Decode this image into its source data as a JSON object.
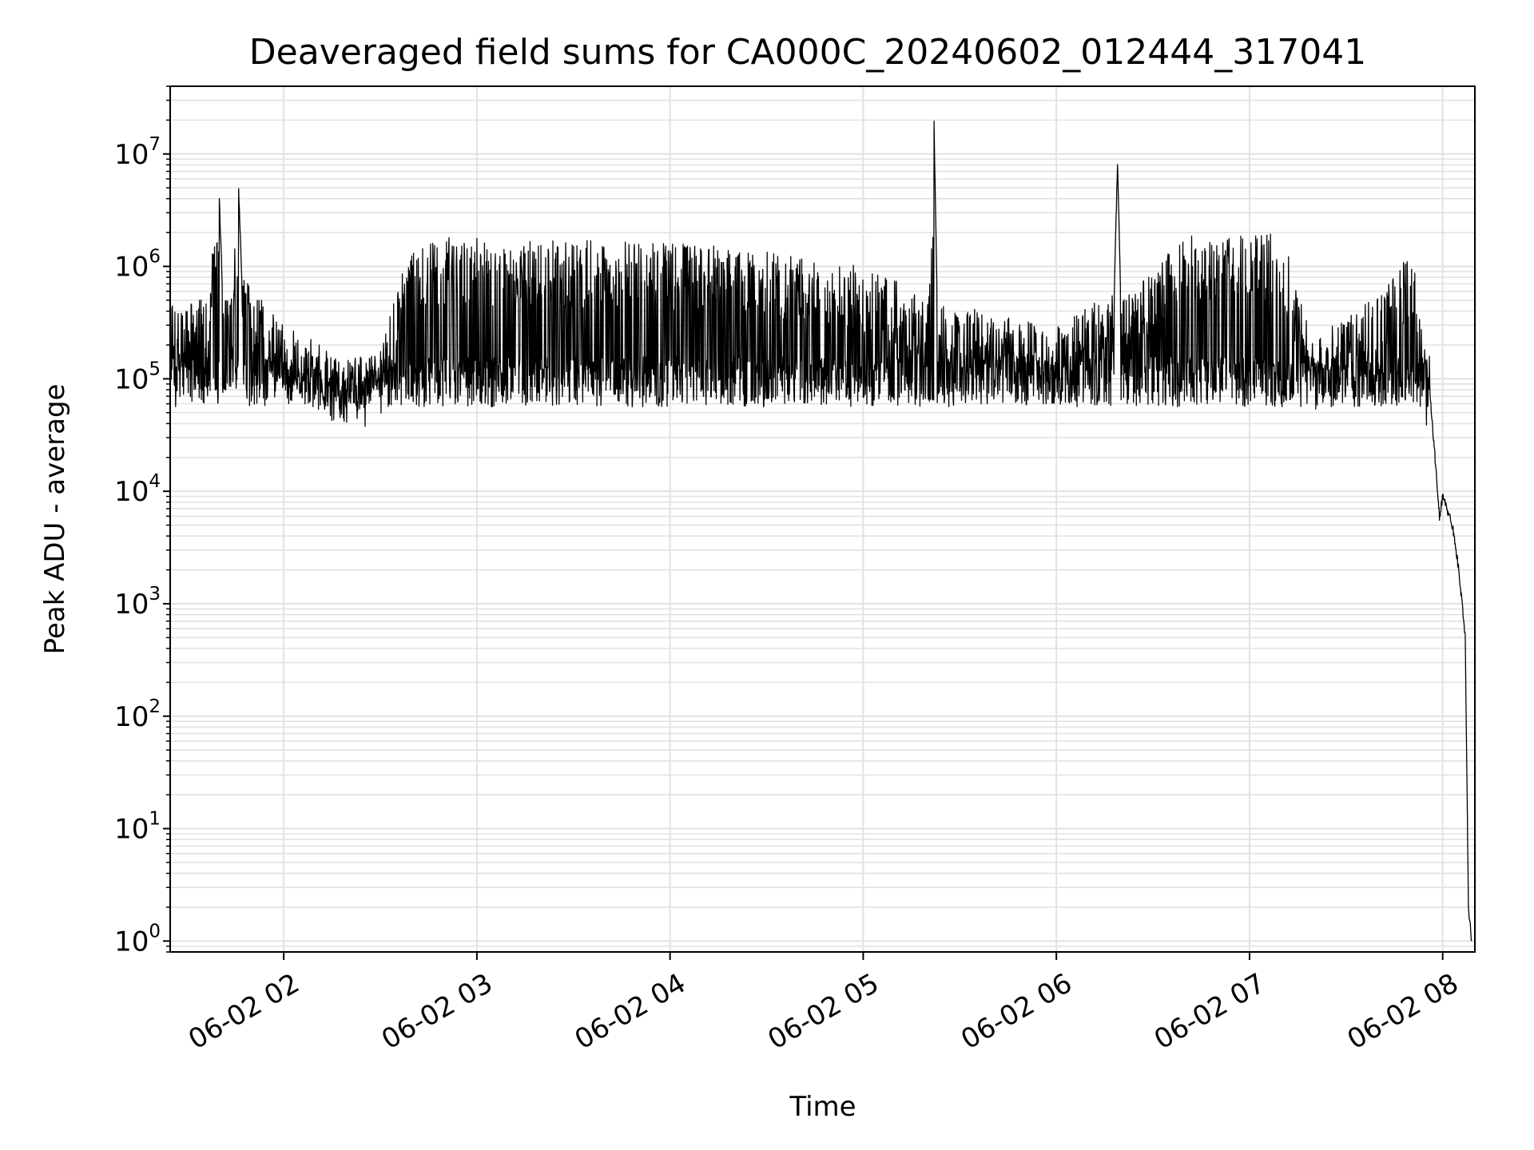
{
  "chart_data": {
    "type": "line",
    "title": "Deaveraged field sums for CA000C_20240602_012444_317041",
    "xlabel": "Time",
    "ylabel": "Peak ADU - average",
    "yscale": "log",
    "ylim": [
      0.8,
      40000000
    ],
    "xlim": [
      "2024-06-02 01:24:44",
      "2024-06-02 08:10:00"
    ],
    "grid": "major and minor",
    "x_ticks": [
      "06-02 02",
      "06-02 03",
      "06-02 04",
      "06-02 05",
      "06-02 06",
      "06-02 07",
      "06-02 08"
    ],
    "y_ticks": [
      {
        "base": "10",
        "exp": "0"
      },
      {
        "base": "10",
        "exp": "1"
      },
      {
        "base": "10",
        "exp": "2"
      },
      {
        "base": "10",
        "exp": "3"
      },
      {
        "base": "10",
        "exp": "4"
      },
      {
        "base": "10",
        "exp": "5"
      },
      {
        "base": "10",
        "exp": "6"
      },
      {
        "base": "10",
        "exp": "7"
      }
    ],
    "series": [
      {
        "color": "#000000",
        "points": [
          [
            "2024-06-02 01:24:44",
            500000
          ],
          [
            "2024-06-02 01:30",
            450000
          ],
          [
            "2024-06-02 01:36",
            530000
          ],
          [
            "2024-06-02 01:40",
            3800000
          ],
          [
            "2024-06-02 01:41",
            600000
          ],
          [
            "2024-06-02 01:44",
            700000
          ],
          [
            "2024-06-02 01:46",
            4800000
          ],
          [
            "2024-06-02 01:47",
            800000
          ],
          [
            "2024-06-02 01:52",
            600000
          ],
          [
            "2024-06-02 02:00",
            300000
          ],
          [
            "2024-06-02 02:10",
            220000
          ],
          [
            "2024-06-02 02:20",
            120000
          ],
          [
            "2024-06-02 02:30",
            180000
          ],
          [
            "2024-06-02 02:40",
            1800000
          ],
          [
            "2024-06-02 02:50",
            1800000
          ],
          [
            "2024-06-02 03:00",
            1800000
          ],
          [
            "2024-06-02 03:10",
            1700000
          ],
          [
            "2024-06-02 03:20",
            1700000
          ],
          [
            "2024-06-02 03:40",
            1700000
          ],
          [
            "2024-06-02 04:00",
            1600000
          ],
          [
            "2024-06-02 04:20",
            1500000
          ],
          [
            "2024-06-02 04:40",
            1200000
          ],
          [
            "2024-06-02 05:00",
            1000000
          ],
          [
            "2024-06-02 05:20",
            600000
          ],
          [
            "2024-06-02 05:22",
            18000000
          ],
          [
            "2024-06-02 05:23",
            500000
          ],
          [
            "2024-06-02 05:40",
            400000
          ],
          [
            "2024-06-02 06:00",
            300000
          ],
          [
            "2024-06-02 06:18",
            600000
          ],
          [
            "2024-06-02 06:19",
            8800000
          ],
          [
            "2024-06-02 06:20",
            500000
          ],
          [
            "2024-06-02 06:40",
            1900000
          ],
          [
            "2024-06-02 07:00",
            1900000
          ],
          [
            "2024-06-02 07:10",
            2000000
          ],
          [
            "2024-06-02 07:20",
            200000
          ],
          [
            "2024-06-02 07:30",
            400000
          ],
          [
            "2024-06-02 07:40",
            550000
          ],
          [
            "2024-06-02 07:50",
            1500000
          ],
          [
            "2024-06-02 07:52",
            700000
          ],
          [
            "2024-06-02 07:56",
            80000
          ],
          [
            "2024-06-02 07:59",
            6000
          ],
          [
            "2024-06-02 08:00",
            9000
          ],
          [
            "2024-06-02 08:03",
            5000
          ],
          [
            "2024-06-02 08:05",
            2000
          ],
          [
            "2024-06-02 08:07",
            500
          ],
          [
            "2024-06-02 08:08",
            2
          ],
          [
            "2024-06-02 08:09",
            1
          ]
        ]
      }
    ]
  }
}
